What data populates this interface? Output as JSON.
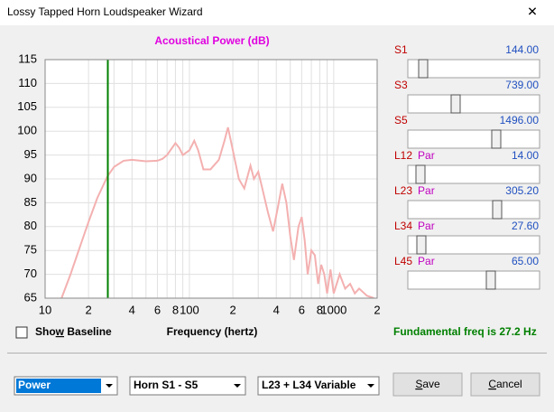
{
  "window": {
    "title": "Lossy Tapped Horn Loudspeaker Wizard",
    "close": "✕"
  },
  "chart_data": {
    "type": "line",
    "title": "Acoustical Power (dB)",
    "x_label": "Frequency (hertz)",
    "x_scale": "log",
    "grid": true,
    "xlim": [
      10,
      2000
    ],
    "ylim": [
      65,
      115
    ],
    "yticks": [
      65,
      70,
      75,
      80,
      85,
      90,
      95,
      100,
      105,
      110,
      115
    ],
    "xticks": [
      {
        "value": 10,
        "label": "10"
      },
      {
        "value": 20,
        "label": "2"
      },
      {
        "value": 40,
        "label": "4"
      },
      {
        "value": 60,
        "label": "6"
      },
      {
        "value": 80,
        "label": "8"
      },
      {
        "value": 100,
        "label": "100"
      },
      {
        "value": 200,
        "label": "2"
      },
      {
        "value": 400,
        "label": "4"
      },
      {
        "value": 600,
        "label": "6"
      },
      {
        "value": 800,
        "label": "8"
      },
      {
        "value": 1000,
        "label": "1000"
      },
      {
        "value": 2000,
        "label": "2"
      }
    ],
    "minor_xticks": [
      30,
      50,
      70,
      90,
      300,
      500,
      700,
      900
    ],
    "marker_x": 27.2,
    "marker_color": "#008000",
    "x": [
      13,
      15,
      18,
      20,
      23,
      27,
      30,
      35,
      40,
      50,
      60,
      65,
      70,
      80,
      85,
      90,
      100,
      108,
      115,
      125,
      140,
      160,
      175,
      185,
      200,
      220,
      240,
      250,
      265,
      280,
      300,
      320,
      350,
      380,
      410,
      440,
      470,
      500,
      530,
      570,
      600,
      630,
      660,
      700,
      740,
      780,
      820,
      860,
      900,
      950,
      1000,
      1100,
      1200,
      1300,
      1400,
      1500,
      1700,
      1900
    ],
    "series": [
      {
        "color": "#f4b0b0",
        "values": [
          65,
          70,
          77,
          81,
          86,
          90.5,
          92.5,
          93.8,
          94,
          93.7,
          93.8,
          94.2,
          95,
          97.5,
          96.5,
          95,
          96,
          98,
          96,
          92,
          92,
          94,
          98,
          100.8,
          96,
          90,
          88,
          90,
          92.8,
          90,
          91.5,
          88,
          83,
          79,
          84,
          89,
          85,
          78,
          73,
          80,
          82,
          77,
          70,
          75,
          74,
          68,
          72,
          70,
          66,
          71,
          66,
          70,
          67,
          68,
          66,
          67,
          65.5,
          65
        ]
      }
    ]
  },
  "sliders": [
    {
      "name": "S1",
      "value": "144.00"
    },
    {
      "name": "S3",
      "value": "739.00"
    },
    {
      "name": "S5",
      "value": "1496.00"
    },
    {
      "name": "L12",
      "suffix": "Par",
      "value": "14.00"
    },
    {
      "name": "L23",
      "suffix": "Par",
      "value": "305.20"
    },
    {
      "name": "L34",
      "suffix": "Par",
      "value": "27.60"
    },
    {
      "name": "L45",
      "suffix": "Par",
      "value": "65.00"
    }
  ],
  "checkbox": {
    "label_parts": [
      "Sho",
      "w",
      " Baseline"
    ]
  },
  "fundamental": "Fundamental freq is 27.2 Hz",
  "dropdowns": [
    "Power",
    "Horn S1 - S5",
    "L23 + L34 Variable"
  ],
  "buttons": [
    {
      "label_parts": [
        "",
        "S",
        "ave"
      ]
    },
    {
      "label_parts": [
        "",
        "C",
        "ancel"
      ]
    }
  ]
}
